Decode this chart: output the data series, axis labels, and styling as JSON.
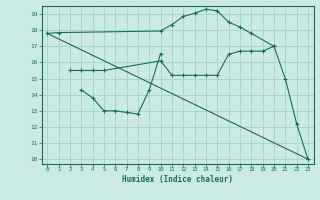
{
  "bg_color": "#cceae4",
  "line_color": "#1a6b5e",
  "grid_color": "#aad4cc",
  "xlabel": "Humidex (Indice chaleur)",
  "ylim": [
    9.7,
    19.5
  ],
  "xlim": [
    -0.5,
    23.5
  ],
  "yticks": [
    10,
    11,
    12,
    13,
    14,
    15,
    16,
    17,
    18,
    19
  ],
  "xticks": [
    0,
    1,
    2,
    3,
    4,
    5,
    6,
    7,
    8,
    9,
    10,
    11,
    12,
    13,
    14,
    15,
    16,
    17,
    18,
    19,
    20,
    21,
    22,
    23
  ],
  "line1_x": [
    0,
    1,
    10,
    11,
    12,
    13,
    14,
    15,
    16,
    17,
    18,
    20,
    21,
    22,
    23
  ],
  "line1_y": [
    17.8,
    17.85,
    17.95,
    18.35,
    18.85,
    19.05,
    19.3,
    19.2,
    18.5,
    18.2,
    17.8,
    17.0,
    15.0,
    12.2,
    10.0
  ],
  "line2_x": [
    2,
    3,
    4,
    5,
    10,
    11,
    12,
    13,
    14,
    15,
    16,
    17,
    18,
    19,
    20
  ],
  "line2_y": [
    15.5,
    15.5,
    15.5,
    15.5,
    16.1,
    15.2,
    15.2,
    15.2,
    15.2,
    15.2,
    16.5,
    16.7,
    16.7,
    16.7,
    17.0
  ],
  "line3_x": [
    3,
    4,
    5,
    6,
    7,
    8,
    9,
    10
  ],
  "line3_y": [
    14.3,
    13.8,
    13.0,
    13.0,
    12.9,
    12.8,
    14.3,
    16.55
  ],
  "line4_x": [
    0,
    23
  ],
  "line4_y": [
    17.8,
    10.0
  ]
}
